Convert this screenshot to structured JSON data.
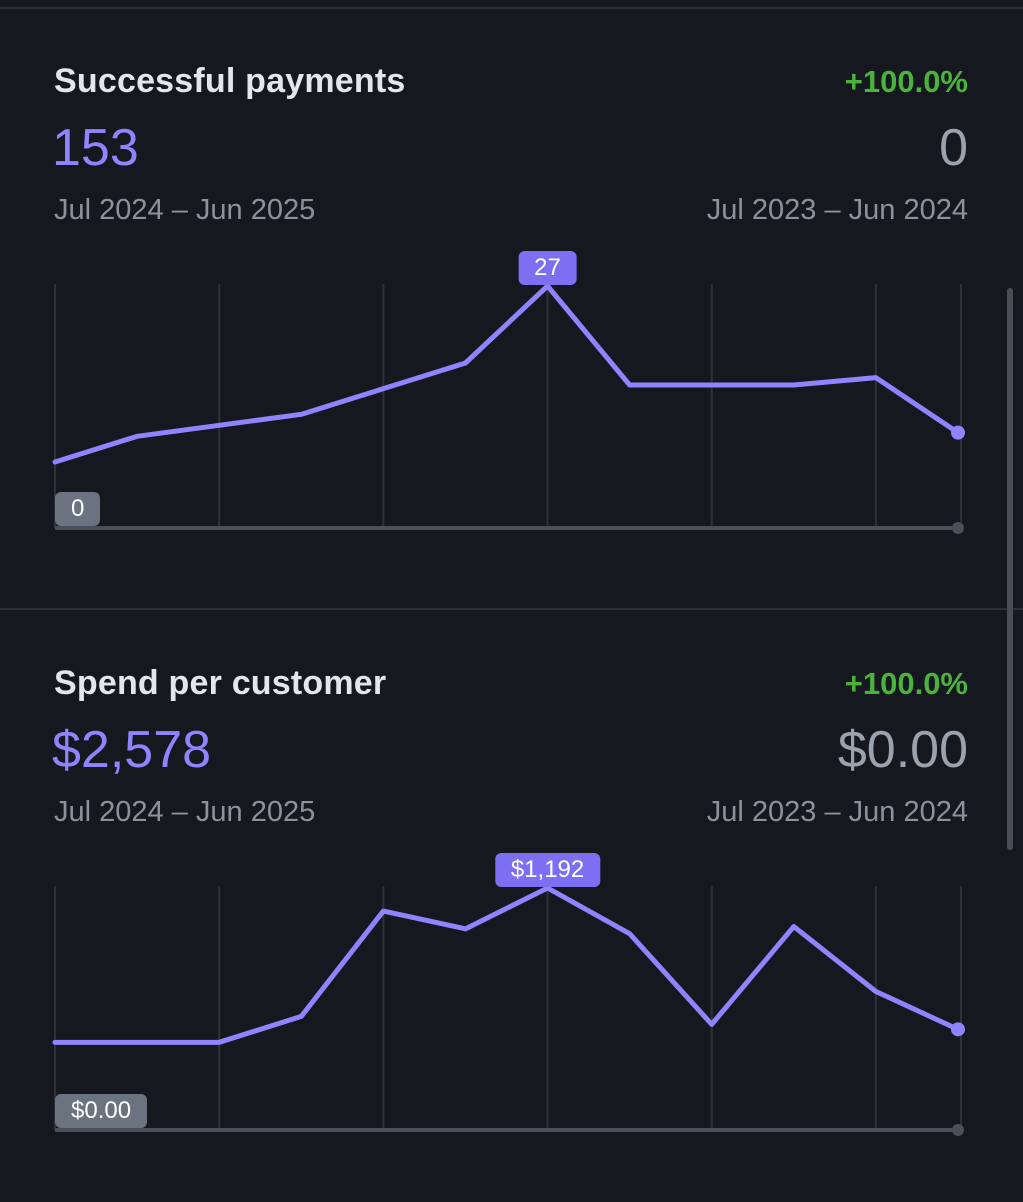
{
  "colors": {
    "background": "#16181f",
    "line": "#8f84ff",
    "positive": "#4bb33a",
    "muted": "#8c929c",
    "peak_badge": "#7c6ff2",
    "min_badge": "#6b7280"
  },
  "cards": [
    {
      "title": "Successful payments",
      "change": "+100.0%",
      "value": "153",
      "period": "Jul 2024 – Jun 2025",
      "prev_value": "0",
      "prev_period": "Jul 2023 – Jun 2024",
      "peak_label": "27",
      "min_label": "0"
    },
    {
      "title": "Spend per customer",
      "change": "+100.0%",
      "value": "$2,578",
      "period": "Jul 2024 – Jun 2025",
      "prev_value": "$0.00",
      "prev_period": "Jul 2023 – Jun 2024",
      "peak_label": "$1,192",
      "min_label": "$0.00"
    }
  ],
  "chart_data": [
    {
      "type": "line",
      "title": "Successful payments",
      "x": [
        1,
        2,
        3,
        4,
        5,
        6,
        7,
        8,
        9,
        10,
        11,
        12
      ],
      "values": [
        3,
        6.5,
        8,
        9.5,
        13,
        16.5,
        27,
        13.5,
        13.5,
        13.5,
        14.5,
        7
      ],
      "ylim": [
        0,
        27
      ],
      "grid": "vertical",
      "peak_value": 27,
      "min_value": 0
    },
    {
      "type": "line",
      "title": "Spend per customer",
      "x": [
        1,
        2,
        3,
        4,
        5,
        6,
        7,
        8,
        9,
        10,
        11,
        12
      ],
      "values": [
        263,
        263,
        263,
        419,
        1053,
        946,
        1192,
        917,
        371,
        960,
        569,
        341
      ],
      "ylim": [
        0,
        1192
      ],
      "grid": "vertical",
      "peak_value": 1192,
      "min_value": 0
    }
  ]
}
